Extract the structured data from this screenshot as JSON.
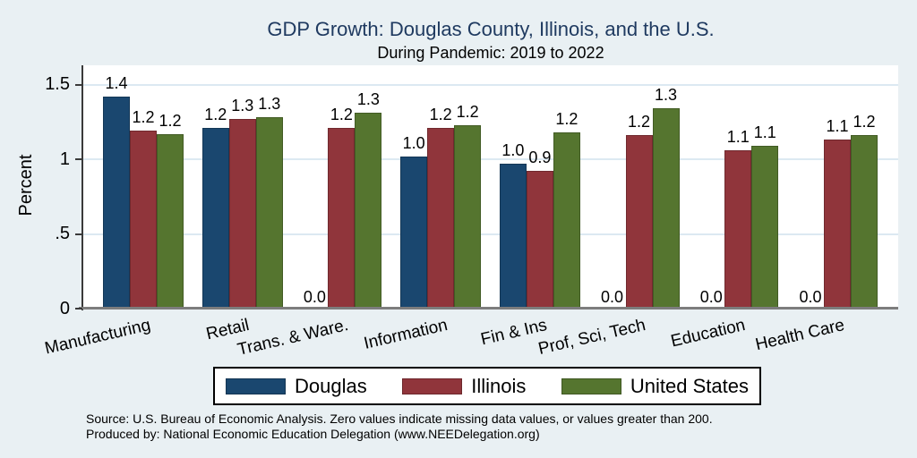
{
  "chart_data": {
    "type": "bar",
    "title": "GDP Growth: Douglas County, Illinois, and the U.S.",
    "subtitle": "During Pandemic: 2019 to 2022",
    "xlabel": "",
    "ylabel": "Percent",
    "ylim": [
      0,
      1.5
    ],
    "grid": true,
    "legend_position": "bottom",
    "yticks": [
      {
        "value": 0,
        "label": "0"
      },
      {
        "value": 0.5,
        "label": ".5"
      },
      {
        "value": 1,
        "label": "1"
      },
      {
        "value": 1.5,
        "label": "1.5"
      }
    ],
    "categories": [
      "Manufacturing",
      "Retail",
      "Trans. & Ware.",
      "Information",
      "Fin & Ins",
      "Prof, Sci, Tech",
      "Education",
      "Health Care"
    ],
    "series": [
      {
        "name": "Douglas",
        "color": "#1a476f",
        "values": [
          1.42,
          1.21,
          0,
          1.02,
          0.97,
          0,
          0,
          0
        ],
        "labels": [
          "1.4",
          "1.2",
          "0.0",
          "1.0",
          "1.0",
          "0.0",
          "0.0",
          "0.0"
        ]
      },
      {
        "name": "Illinois",
        "color": "#90353b",
        "values": [
          1.19,
          1.27,
          1.21,
          1.21,
          0.92,
          1.16,
          1.06,
          1.13
        ],
        "labels": [
          "1.2",
          "1.3",
          "1.2",
          "1.2",
          "0.9",
          "1.2",
          "1.1",
          "1.1"
        ]
      },
      {
        "name": "United States",
        "color": "#55752f",
        "values": [
          1.17,
          1.28,
          1.31,
          1.23,
          1.18,
          1.34,
          1.09,
          1.16
        ],
        "labels": [
          "1.2",
          "1.3",
          "1.3",
          "1.2",
          "1.2",
          "1.3",
          "1.1",
          "1.2"
        ]
      }
    ]
  },
  "notes": {
    "source_line": "Source: U.S. Bureau of Economic Analysis. Zero values indicate missing data values, or values greater than 200.",
    "produced_line": "Produced by: National Economic Education Delegation (www.NEEDelegation.org)"
  },
  "colors": {
    "background": "#e9f0f3",
    "plot_background": "#ffffff",
    "gridline": "#dce9f2",
    "axis_line": "#3a3a3a",
    "baseline": "#7d7d7d",
    "title": "#1f3a60",
    "text": "#000000",
    "legend_border": "#000000"
  }
}
